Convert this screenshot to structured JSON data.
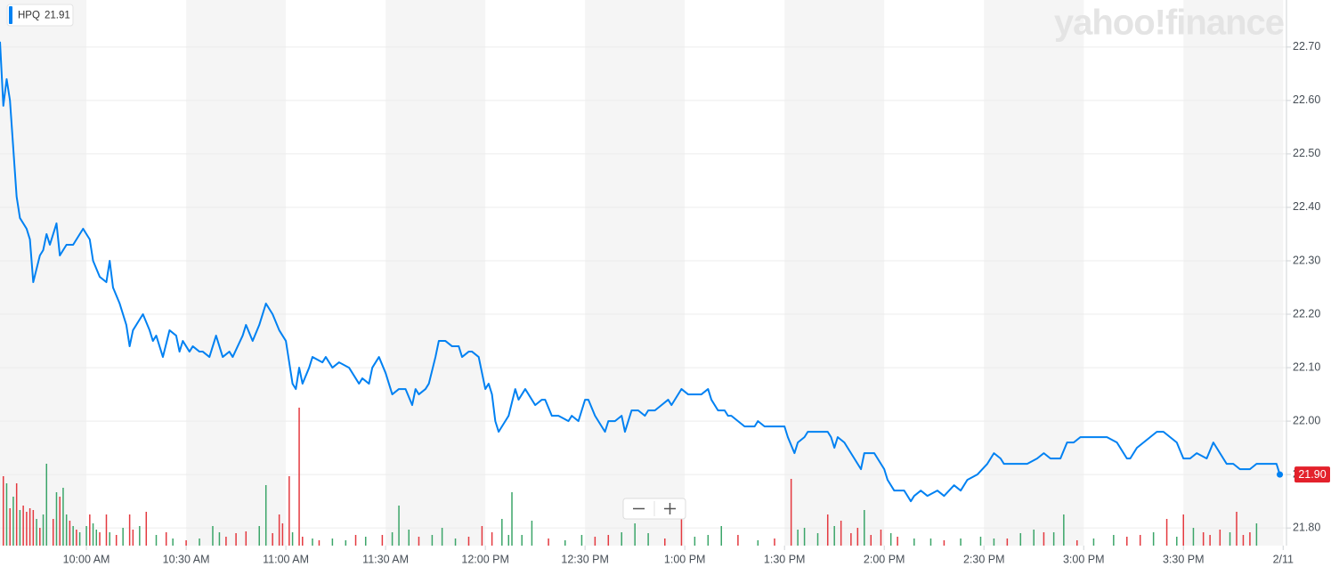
{
  "chart_data": {
    "type": "line",
    "watermark": "yahoo!finance",
    "quote": {
      "value": 21.91,
      "label": "21.91"
    },
    "last_price": {
      "value": 21.9,
      "label": "21.90"
    },
    "series": [
      {
        "name": "HPQ",
        "color": "#0081f2",
        "x": [
          574,
          575,
          576,
          577,
          579,
          580,
          582,
          583,
          584,
          586,
          587,
          588,
          589,
          591,
          592,
          594,
          596,
          599,
          601,
          602,
          604,
          606,
          607,
          608,
          610,
          612,
          613,
          614,
          616,
          617,
          619,
          620,
          621,
          623,
          625,
          627,
          628,
          629,
          631,
          632,
          634,
          635,
          637,
          639,
          641,
          643,
          644,
          647,
          648,
          650,
          652,
          654,
          656,
          658,
          660,
          662,
          663,
          664,
          665,
          667,
          668,
          671,
          672,
          674,
          676,
          679,
          680,
          682,
          683,
          685,
          686,
          688,
          690,
          692,
          694,
          696,
          698,
          699,
          700,
          702,
          703,
          705,
          706,
          708,
          710,
          712,
          713,
          715,
          716,
          718,
          720,
          721,
          722,
          723,
          724,
          726,
          727,
          729,
          730,
          732,
          733,
          735,
          737,
          738,
          740,
          742,
          745,
          746,
          748,
          750,
          751,
          753,
          754,
          756,
          757,
          759,
          761,
          762,
          764,
          766,
          768,
          769,
          771,
          773,
          775,
          776,
          779,
          781,
          782,
          785,
          787,
          788,
          790,
          792,
          793,
          794,
          796,
          798,
          801,
          802,
          804,
          806,
          808,
          810,
          811,
          813,
          814,
          816,
          817,
          820,
          823,
          824,
          825,
          826,
          828,
          830,
          832,
          833,
          834,
          837,
          839,
          840,
          841,
          843,
          846,
          848,
          849,
          851,
          853,
          856,
          858,
          861,
          863,
          865,
          868,
          871,
          873,
          875,
          876,
          878,
          881,
          883,
          886,
          888,
          890,
          893,
          895,
          897,
          899,
          902,
          905,
          907,
          910,
          913,
          914,
          916,
          920,
          922,
          924,
          926,
          928,
          930,
          932,
          934,
          937,
          939,
          941,
          943,
          945,
          947,
          950,
          952,
          954,
          958,
          959
        ],
        "values": [
          22.71,
          22.59,
          22.64,
          22.6,
          22.42,
          22.38,
          22.36,
          22.34,
          22.26,
          22.31,
          22.32,
          22.35,
          22.33,
          22.37,
          22.31,
          22.33,
          22.33,
          22.36,
          22.34,
          22.3,
          22.27,
          22.26,
          22.3,
          22.25,
          22.22,
          22.18,
          22.14,
          22.17,
          22.19,
          22.2,
          22.17,
          22.15,
          22.16,
          22.12,
          22.17,
          22.16,
          22.13,
          22.15,
          22.13,
          22.14,
          22.13,
          22.13,
          22.12,
          22.16,
          22.12,
          22.13,
          22.12,
          22.16,
          22.18,
          22.15,
          22.18,
          22.22,
          22.2,
          22.17,
          22.15,
          22.07,
          22.06,
          22.1,
          22.07,
          22.1,
          22.12,
          22.11,
          22.12,
          22.1,
          22.11,
          22.1,
          22.09,
          22.07,
          22.08,
          22.07,
          22.1,
          22.12,
          22.09,
          22.05,
          22.06,
          22.06,
          22.03,
          22.06,
          22.05,
          22.06,
          22.07,
          22.12,
          22.15,
          22.15,
          22.14,
          22.14,
          22.12,
          22.13,
          22.13,
          22.12,
          22.06,
          22.07,
          22.05,
          22.0,
          21.98,
          22.0,
          22.01,
          22.06,
          22.04,
          22.06,
          22.05,
          22.03,
          22.04,
          22.04,
          22.01,
          22.01,
          22.0,
          22.01,
          22.0,
          22.04,
          22.04,
          22.01,
          22.0,
          21.98,
          22.0,
          22.0,
          22.01,
          21.98,
          22.02,
          22.02,
          22.01,
          22.02,
          22.02,
          22.03,
          22.04,
          22.03,
          22.06,
          22.05,
          22.05,
          22.05,
          22.06,
          22.04,
          22.02,
          22.02,
          22.01,
          22.01,
          22.0,
          21.99,
          21.99,
          22.0,
          21.99,
          21.99,
          21.99,
          21.99,
          21.97,
          21.94,
          21.96,
          21.97,
          21.98,
          21.98,
          21.98,
          21.97,
          21.95,
          21.97,
          21.96,
          21.94,
          21.92,
          21.91,
          21.94,
          21.94,
          21.92,
          21.91,
          21.89,
          21.87,
          21.87,
          21.85,
          21.86,
          21.87,
          21.86,
          21.87,
          21.86,
          21.88,
          21.87,
          21.89,
          21.9,
          21.92,
          21.94,
          21.93,
          21.92,
          21.92,
          21.92,
          21.92,
          21.93,
          21.94,
          21.93,
          21.93,
          21.96,
          21.96,
          21.97,
          21.97,
          21.97,
          21.97,
          21.96,
          21.93,
          21.93,
          21.95,
          21.97,
          21.98,
          21.98,
          21.97,
          21.96,
          21.93,
          21.93,
          21.94,
          21.93,
          21.96,
          21.94,
          21.92,
          21.92,
          21.91,
          21.91,
          21.92,
          21.92,
          21.92,
          21.9
        ]
      }
    ],
    "volume": {
      "x": [
        575,
        576,
        577,
        578,
        579,
        580,
        581,
        582,
        583,
        584,
        585,
        586,
        587,
        588,
        590,
        591,
        592,
        593,
        594,
        595,
        596,
        597,
        598,
        600,
        601,
        602,
        603,
        604,
        606,
        607,
        609,
        611,
        613,
        614,
        616,
        618,
        621,
        624,
        626,
        630,
        634,
        638,
        640,
        642,
        645,
        648,
        652,
        654,
        656,
        658,
        659,
        661,
        662,
        664,
        665,
        668,
        670,
        674,
        678,
        681,
        684,
        689,
        692,
        694,
        697,
        700,
        704,
        707,
        711,
        715,
        719,
        722,
        725,
        727,
        728,
        731,
        734,
        739,
        744,
        749,
        753,
        757,
        761,
        765,
        769,
        774,
        779,
        783,
        787,
        791,
        796,
        802,
        807,
        812,
        814,
        816,
        820,
        823,
        825,
        827,
        830,
        832,
        834,
        836,
        839,
        842,
        844,
        849,
        854,
        858,
        863,
        869,
        873,
        877,
        881,
        885,
        888,
        891,
        894,
        898,
        903,
        909,
        913,
        917,
        921,
        925,
        928,
        930,
        933,
        936,
        938,
        941,
        944,
        946,
        948,
        950,
        952
      ],
      "values": [
        78,
        70,
        42,
        55,
        70,
        40,
        45,
        38,
        42,
        40,
        30,
        20,
        35,
        92,
        30,
        60,
        55,
        65,
        35,
        28,
        22,
        18,
        15,
        22,
        35,
        25,
        18,
        15,
        35,
        15,
        12,
        20,
        35,
        18,
        22,
        38,
        12,
        15,
        8,
        6,
        8,
        22,
        15,
        10,
        14,
        16,
        22,
        68,
        14,
        35,
        25,
        78,
        15,
        155,
        10,
        8,
        6,
        8,
        6,
        12,
        10,
        12,
        15,
        45,
        18,
        10,
        12,
        20,
        8,
        10,
        22,
        15,
        30,
        12,
        60,
        12,
        28,
        8,
        6,
        12,
        10,
        12,
        15,
        25,
        14,
        8,
        30,
        10,
        12,
        22,
        12,
        6,
        8,
        75,
        18,
        20,
        14,
        35,
        22,
        28,
        14,
        20,
        40,
        12,
        18,
        14,
        10,
        8,
        8,
        6,
        8,
        10,
        8,
        8,
        14,
        18,
        15,
        15,
        35,
        6,
        8,
        12,
        10,
        12,
        15,
        30,
        10,
        35,
        20,
        15,
        12,
        18,
        15,
        38,
        12,
        15,
        25
      ],
      "colors": [
        "#e4393f",
        "#3ba569",
        "#e4393f",
        "#3ba569",
        "#e4393f",
        "#3ba569",
        "#e4393f",
        "#e4393f",
        "#e4393f",
        "#e4393f",
        "#3ba569",
        "#e4393f",
        "#3ba569",
        "#3ba569",
        "#e4393f",
        "#3ba569",
        "#e4393f",
        "#3ba569",
        "#3ba569",
        "#e4393f",
        "#3ba569",
        "#e4393f",
        "#3ba569",
        "#3ba569",
        "#e4393f",
        "#3ba569",
        "#3ba569",
        "#e4393f",
        "#e4393f",
        "#3ba569",
        "#e4393f",
        "#3ba569",
        "#e4393f",
        "#e4393f",
        "#3ba569",
        "#e4393f",
        "#3ba569",
        "#e4393f",
        "#3ba569",
        "#e4393f",
        "#3ba569",
        "#3ba569",
        "#3ba569",
        "#e4393f",
        "#e4393f",
        "#e4393f",
        "#3ba569",
        "#3ba569",
        "#e4393f",
        "#e4393f",
        "#e4393f",
        "#e4393f",
        "#3ba569",
        "#e4393f",
        "#e4393f",
        "#3ba569",
        "#e4393f",
        "#3ba569",
        "#3ba569",
        "#e4393f",
        "#3ba569",
        "#e4393f",
        "#3ba569",
        "#3ba569",
        "#3ba569",
        "#e4393f",
        "#3ba569",
        "#3ba569",
        "#3ba569",
        "#e4393f",
        "#e4393f",
        "#e4393f",
        "#3ba569",
        "#3ba569",
        "#3ba569",
        "#3ba569",
        "#3ba569",
        "#e4393f",
        "#3ba569",
        "#3ba569",
        "#e4393f",
        "#e4393f",
        "#3ba569",
        "#3ba569",
        "#3ba569",
        "#e4393f",
        "#e4393f",
        "#3ba569",
        "#3ba569",
        "#3ba569",
        "#e4393f",
        "#3ba569",
        "#e4393f",
        "#e4393f",
        "#3ba569",
        "#3ba569",
        "#3ba569",
        "#e4393f",
        "#3ba569",
        "#e4393f",
        "#e4393f",
        "#e4393f",
        "#3ba569",
        "#e4393f",
        "#e4393f",
        "#3ba569",
        "#e4393f",
        "#3ba569",
        "#3ba569",
        "#e4393f",
        "#3ba569",
        "#3ba569",
        "#3ba569",
        "#e4393f",
        "#3ba569",
        "#3ba569",
        "#e4393f",
        "#3ba569",
        "#3ba569",
        "#e4393f",
        "#3ba569",
        "#3ba569",
        "#e4393f",
        "#e4393f",
        "#3ba569",
        "#e4393f",
        "#3ba569",
        "#e4393f",
        "#3ba569",
        "#e4393f",
        "#e4393f",
        "#e4393f",
        "#3ba569",
        "#e4393f",
        "#e4393f",
        "#e4393f",
        "#3ba569"
      ]
    },
    "xlim": [
      574,
      961
    ],
    "xticks": [
      {
        "value": 600,
        "label": "10:00 AM"
      },
      {
        "value": 630,
        "label": "10:30 AM"
      },
      {
        "value": 660,
        "label": "11:00 AM"
      },
      {
        "value": 690,
        "label": "11:30 AM"
      },
      {
        "value": 720,
        "label": "12:00 PM"
      },
      {
        "value": 750,
        "label": "12:30 PM"
      },
      {
        "value": 780,
        "label": "1:00 PM"
      },
      {
        "value": 810,
        "label": "1:30 PM"
      },
      {
        "value": 840,
        "label": "2:00 PM"
      },
      {
        "value": 870,
        "label": "2:30 PM"
      },
      {
        "value": 900,
        "label": "3:00 PM"
      },
      {
        "value": 930,
        "label": "3:30 PM"
      },
      {
        "value": 960,
        "label": "2/11"
      }
    ],
    "ylim": [
      21.767,
      22.788
    ],
    "yticks": [
      {
        "value": 21.8,
        "label": "21.80"
      },
      {
        "value": 21.9,
        "label": "21.90"
      },
      {
        "value": 22.0,
        "label": "22.00"
      },
      {
        "value": 22.1,
        "label": "22.10"
      },
      {
        "value": 22.2,
        "label": "22.20"
      },
      {
        "value": 22.3,
        "label": "22.30"
      },
      {
        "value": 22.4,
        "label": "22.40"
      },
      {
        "value": 22.5,
        "label": "22.50"
      },
      {
        "value": 22.6,
        "label": "22.60"
      },
      {
        "value": 22.7,
        "label": "22.70"
      }
    ],
    "grid": true,
    "alternate_bands": true
  }
}
